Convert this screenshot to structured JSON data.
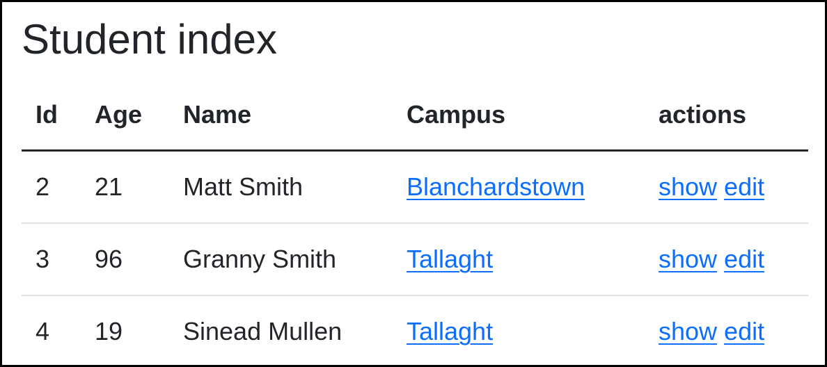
{
  "page": {
    "title": "Student index"
  },
  "table": {
    "headers": {
      "id": "Id",
      "age": "Age",
      "name": "Name",
      "campus": "Campus",
      "actions": "actions"
    },
    "rows": [
      {
        "id": "2",
        "age": "21",
        "name": "Matt Smith",
        "campus": "Blanchardstown",
        "show": "show",
        "edit": "edit"
      },
      {
        "id": "3",
        "age": "96",
        "name": "Granny Smith",
        "campus": "Tallaght",
        "show": "show",
        "edit": "edit"
      },
      {
        "id": "4",
        "age": "19",
        "name": "Sinead Mullen",
        "campus": "Tallaght",
        "show": "show",
        "edit": "edit"
      }
    ]
  },
  "colors": {
    "text": "#212529",
    "link": "#0d6efd",
    "row_divider": "#dee2e6",
    "frame_border": "#000000"
  }
}
